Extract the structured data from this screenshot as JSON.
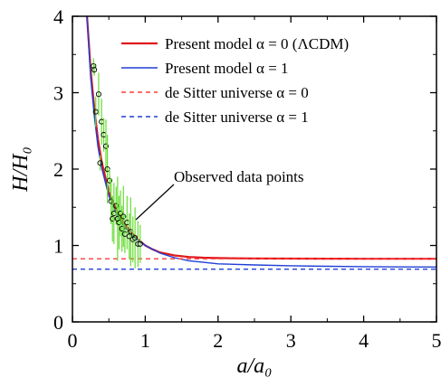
{
  "chart_data": {
    "type": "line",
    "title": "",
    "xlabel": "a/a₀",
    "ylabel": "H/H₀",
    "xlim": [
      0,
      5
    ],
    "ylim": [
      0,
      4
    ],
    "x_ticks": [
      "0",
      "1",
      "2",
      "3",
      "4",
      "5"
    ],
    "y_ticks": [
      "0",
      "1",
      "2",
      "3",
      "4"
    ],
    "grid": false,
    "legend_position": "top-right",
    "colors": {
      "present_alpha0": "#e0181c",
      "present_alpha1": "#1f3fd6",
      "desitter_alpha0": "#ff3b3b",
      "desitter_alpha1": "#1f3fd6",
      "data_points": "#000000",
      "error_bars": "#66dd33"
    },
    "legend": [
      {
        "text": "Present model  α = 0 (ΛCDM)",
        "color": "#e0181c",
        "style": "solid"
      },
      {
        "text": "Present model  α = 1",
        "color": "#1f3fd6",
        "style": "solid"
      },
      {
        "text": "de Sitter universe  α = 0",
        "color": "#ff3b3b",
        "style": "dashed"
      },
      {
        "text": "de Sitter universe  α = 1",
        "color": "#1f3fd6",
        "style": "dashed"
      }
    ],
    "annotation": "Observed data points",
    "series": [
      {
        "name": "Present model α = 0 (ΛCDM)",
        "style": "solid",
        "x": [
          0.2,
          0.25,
          0.3,
          0.35,
          0.4,
          0.5,
          0.6,
          0.7,
          0.8,
          0.9,
          1.0,
          1.1,
          1.2,
          1.4,
          1.6,
          1.8,
          2.0,
          2.5,
          3.0,
          3.5,
          4.0,
          4.5,
          5.0
        ],
        "y": [
          4.0,
          3.3,
          2.8,
          2.4,
          2.1,
          1.7,
          1.47,
          1.3,
          1.18,
          1.08,
          1.0,
          0.95,
          0.91,
          0.87,
          0.85,
          0.84,
          0.835,
          0.83,
          0.828,
          0.827,
          0.826,
          0.826,
          0.826
        ]
      },
      {
        "name": "Present model α = 1",
        "style": "solid",
        "x": [
          0.2,
          0.25,
          0.3,
          0.35,
          0.4,
          0.5,
          0.6,
          0.7,
          0.8,
          0.9,
          1.0,
          1.2,
          1.4,
          1.6,
          1.8,
          2.0,
          2.5,
          3.0,
          3.5,
          4.0,
          4.5,
          5.0
        ],
        "y": [
          4.0,
          3.2,
          2.7,
          2.3,
          2.02,
          1.65,
          1.42,
          1.26,
          1.15,
          1.07,
          1.0,
          0.9,
          0.84,
          0.8,
          0.78,
          0.76,
          0.745,
          0.735,
          0.728,
          0.723,
          0.72,
          0.718
        ]
      },
      {
        "name": "de Sitter universe α = 0",
        "style": "dashed",
        "x": [
          0,
          5
        ],
        "y": [
          0.826,
          0.826
        ]
      },
      {
        "name": "de Sitter universe α = 1",
        "style": "dashed",
        "x": [
          0,
          5
        ],
        "y": [
          0.69,
          0.69
        ]
      }
    ],
    "observed_points": [
      {
        "x": 0.29,
        "y": 3.35,
        "err": 0.1
      },
      {
        "x": 0.3,
        "y": 3.3,
        "err": 0.08
      },
      {
        "x": 0.32,
        "y": 2.75,
        "err": 0.2
      },
      {
        "x": 0.36,
        "y": 2.98,
        "err": 0.28
      },
      {
        "x": 0.38,
        "y": 2.08,
        "err": 0.1
      },
      {
        "x": 0.4,
        "y": 2.62,
        "err": 0.3
      },
      {
        "x": 0.43,
        "y": 2.45,
        "err": 0.22
      },
      {
        "x": 0.46,
        "y": 2.3,
        "err": 0.35
      },
      {
        "x": 0.48,
        "y": 2.0,
        "err": 0.45
      },
      {
        "x": 0.51,
        "y": 1.85,
        "err": 0.15
      },
      {
        "x": 0.53,
        "y": 1.58,
        "err": 0.3
      },
      {
        "x": 0.55,
        "y": 1.35,
        "err": 0.3
      },
      {
        "x": 0.57,
        "y": 1.42,
        "err": 0.4
      },
      {
        "x": 0.6,
        "y": 1.52,
        "err": 0.25
      },
      {
        "x": 0.62,
        "y": 1.35,
        "err": 0.55
      },
      {
        "x": 0.64,
        "y": 1.3,
        "err": 0.35
      },
      {
        "x": 0.66,
        "y": 1.42,
        "err": 0.3
      },
      {
        "x": 0.68,
        "y": 1.22,
        "err": 0.3
      },
      {
        "x": 0.7,
        "y": 1.38,
        "err": 0.4
      },
      {
        "x": 0.72,
        "y": 1.15,
        "err": 0.25
      },
      {
        "x": 0.75,
        "y": 1.3,
        "err": 0.35
      },
      {
        "x": 0.78,
        "y": 1.12,
        "err": 0.3
      },
      {
        "x": 0.8,
        "y": 1.18,
        "err": 0.45
      },
      {
        "x": 0.83,
        "y": 1.08,
        "err": 0.3
      },
      {
        "x": 0.86,
        "y": 1.1,
        "err": 0.4
      },
      {
        "x": 0.9,
        "y": 1.02,
        "err": 0.3
      },
      {
        "x": 0.93,
        "y": 1.02,
        "err": 0.25
      }
    ]
  }
}
